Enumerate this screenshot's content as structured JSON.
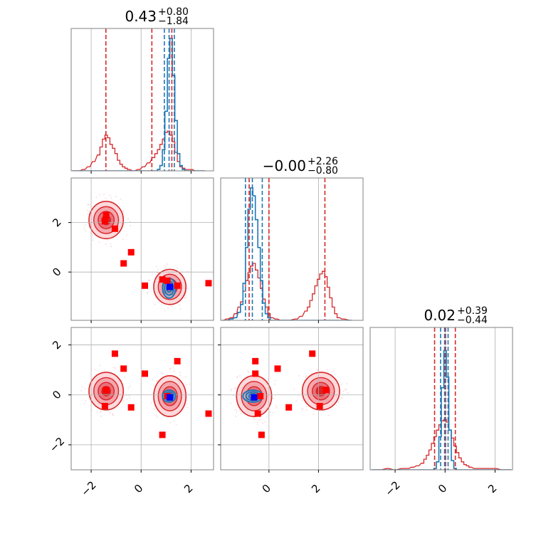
{
  "chart_data": {
    "type": "corner",
    "colors": {
      "red": "#d62728",
      "blue": "#1f77b4",
      "marker_red": "#ff0000",
      "marker_blue": "#0000ff",
      "grid": "#b0b0b0",
      "frame": "#808080"
    },
    "ranges": {
      "p0": [
        -2.8,
        2.9
      ],
      "p1": [
        -1.95,
        3.8
      ],
      "p2": [
        -3.0,
        2.7
      ]
    },
    "ticks": {
      "p0": [
        -2,
        0,
        2
      ],
      "p1": [
        0,
        2
      ],
      "p2": [
        -2,
        0,
        2
      ]
    },
    "tick_labels": {
      "p0": [
        "−2",
        "0",
        "2"
      ],
      "p1": [
        "0",
        "2"
      ],
      "p2": [
        "−2",
        "0",
        "2"
      ]
    },
    "titles": [
      {
        "value": "0.43",
        "plus": "+0.80",
        "minus": "−1.84"
      },
      {
        "value": "−0.00",
        "plus": "+2.26",
        "minus": "−0.80"
      },
      {
        "value": "0.02",
        "plus": "+0.39",
        "minus": "−0.44"
      }
    ],
    "quantile_lines": {
      "red": [
        [
          -1.41,
          0.43,
          1.23
        ],
        [
          -0.8,
          0.0,
          2.26
        ],
        [
          -0.42,
          0.02,
          0.41
        ]
      ],
      "blue": [
        [
          0.93,
          1.12,
          1.33
        ],
        [
          -0.95,
          -0.67,
          -0.27
        ],
        [
          -0.18,
          -0.02,
          0.12
        ]
      ]
    },
    "marginals": [
      {
        "x": [
          -2.7,
          -2.5,
          -2.3,
          -2.1,
          -1.9,
          -1.7,
          -1.6,
          -1.5,
          -1.4,
          -1.3,
          -1.2,
          -1.1,
          -1.0,
          -0.9,
          -0.8,
          -0.7,
          -0.6,
          -0.5,
          -0.3,
          -0.1,
          0.1,
          0.3,
          0.5,
          0.6,
          0.7,
          0.8,
          0.9,
          1.0,
          1.1,
          1.2,
          1.3,
          1.4,
          1.5,
          1.6,
          1.7,
          1.8,
          2.0,
          2.2,
          2.5
        ],
        "red": [
          0,
          0,
          0.01,
          0.03,
          0.07,
          0.12,
          0.18,
          0.24,
          0.27,
          0.25,
          0.2,
          0.17,
          0.13,
          0.08,
          0.05,
          0.03,
          0.02,
          0.01,
          0,
          0.01,
          0.03,
          0.06,
          0.1,
          0.13,
          0.16,
          0.2,
          0.24,
          0.29,
          0.3,
          0.27,
          0.22,
          0.14,
          0.07,
          0.03,
          0.02,
          0.01,
          0.01,
          0,
          0
        ],
        "blue": [
          0,
          0,
          0,
          0,
          0,
          0,
          0,
          0,
          0,
          0,
          0,
          0,
          0,
          0,
          0,
          0,
          0,
          0,
          0,
          0,
          0,
          0,
          0,
          0,
          0.01,
          0.04,
          0.16,
          0.45,
          0.85,
          1.0,
          0.72,
          0.38,
          0.13,
          0.04,
          0.01,
          0,
          0,
          0,
          0
        ]
      },
      {
        "x": [
          -1.85,
          -1.7,
          -1.5,
          -1.35,
          -1.2,
          -1.1,
          -1.0,
          -0.9,
          -0.8,
          -0.7,
          -0.6,
          -0.5,
          -0.4,
          -0.3,
          -0.2,
          -0.1,
          0.0,
          0.1,
          0.3,
          0.5,
          0.8,
          1.1,
          1.3,
          1.5,
          1.6,
          1.7,
          1.8,
          1.9,
          2.0,
          2.1,
          2.2,
          2.3,
          2.4,
          2.5,
          2.6,
          2.7,
          2.8,
          3.0,
          3.3
        ],
        "red": [
          0,
          0.01,
          0.02,
          0.05,
          0.1,
          0.14,
          0.22,
          0.3,
          0.36,
          0.41,
          0.43,
          0.38,
          0.32,
          0.24,
          0.16,
          0.1,
          0.05,
          0.02,
          0.01,
          0,
          0,
          0.01,
          0.03,
          0.07,
          0.1,
          0.15,
          0.2,
          0.26,
          0.31,
          0.35,
          0.37,
          0.33,
          0.25,
          0.17,
          0.1,
          0.05,
          0.02,
          0.01,
          0
        ],
        "blue": [
          0,
          0,
          0.01,
          0.02,
          0.06,
          0.12,
          0.28,
          0.55,
          0.84,
          1.0,
          0.94,
          0.76,
          0.55,
          0.3,
          0.13,
          0.05,
          0.02,
          0,
          0,
          0,
          0,
          0,
          0,
          0,
          0,
          0,
          0,
          0,
          0,
          0,
          0,
          0,
          0,
          0,
          0,
          0,
          0,
          0,
          0
        ]
      },
      {
        "x": [
          -2.9,
          -2.6,
          -2.3,
          -2.0,
          -1.7,
          -1.5,
          -1.3,
          -1.1,
          -0.9,
          -0.8,
          -0.7,
          -0.6,
          -0.5,
          -0.4,
          -0.3,
          -0.2,
          -0.1,
          0.0,
          0.1,
          0.2,
          0.3,
          0.4,
          0.5,
          0.6,
          0.7,
          0.8,
          0.9,
          1.0,
          1.2,
          1.4,
          1.7,
          2.0,
          2.3,
          2.6
        ],
        "red": [
          0,
          0,
          0.01,
          0,
          0.01,
          0.01,
          0.02,
          0.03,
          0.05,
          0.08,
          0.11,
          0.15,
          0.2,
          0.25,
          0.3,
          0.34,
          0.37,
          0.38,
          0.36,
          0.3,
          0.24,
          0.18,
          0.13,
          0.09,
          0.06,
          0.04,
          0.03,
          0.02,
          0.01,
          0.01,
          0.01,
          0.01,
          0,
          0
        ],
        "blue": [
          0,
          0,
          0,
          0,
          0,
          0,
          0,
          0,
          0,
          0,
          0,
          0,
          0,
          0.01,
          0.06,
          0.25,
          0.62,
          0.9,
          0.7,
          0.3,
          0.07,
          0.01,
          0,
          0,
          0,
          0,
          0,
          0,
          0,
          0,
          0,
          0,
          0,
          0
        ]
      }
    ],
    "posteriors": {
      "red_modes": [
        {
          "p0": -1.4,
          "p1": 2.1,
          "p2": 0.15,
          "s0": 0.32,
          "s1": 0.35,
          "s2": 0.35,
          "weight": 0.45
        },
        {
          "p0": 1.15,
          "p1": -0.6,
          "p2": -0.05,
          "s0": 0.3,
          "s1": 0.33,
          "s2": 0.38,
          "weight": 0.55
        }
      ],
      "blue_mode": {
        "p0": 1.12,
        "p1": -0.65,
        "p2": -0.05,
        "s0": 0.13,
        "s1": 0.2,
        "s2": 0.12
      }
    },
    "markers": {
      "red": [
        {
          "p0": -1.4,
          "p1": 2.3,
          "p2": 0.2
        },
        {
          "p0": -1.45,
          "p1": 2.05,
          "p2": -0.45
        },
        {
          "p0": -1.05,
          "p1": 1.75,
          "p2": 1.65
        },
        {
          "p0": -0.4,
          "p1": 0.8,
          "p2": -0.5
        },
        {
          "p0": -0.7,
          "p1": 0.35,
          "p2": 1.05
        },
        {
          "p0": 0.15,
          "p1": -0.55,
          "p2": 0.85
        },
        {
          "p0": 0.85,
          "p1": -0.3,
          "p2": -1.6
        },
        {
          "p0": 1.45,
          "p1": -0.55,
          "p2": 1.35
        },
        {
          "p0": 1.05,
          "p1": -0.35,
          "p2": -0.05
        },
        {
          "p0": 2.7,
          "p1": -0.45,
          "p2": -0.75
        }
      ],
      "blue": {
        "p0": 1.15,
        "p1": -0.6,
        "p2": -0.1
      }
    }
  }
}
